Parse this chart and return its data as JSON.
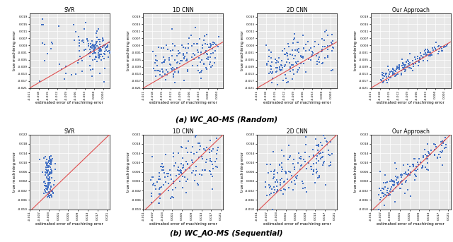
{
  "row1_title": "(a) WC_AO-MS (Random)",
  "row2_title": "(b) WC_AO-MS (Sequential)",
  "subplot_titles_row1": [
    "SVR",
    "1D CNN",
    "2D CNN",
    "Our Approach"
  ],
  "subplot_titles_row2": [
    "SVR",
    "1D CNN",
    "2D CNN",
    "Our Approach"
  ],
  "row1_xlim": [
    -0.021,
    0.005
  ],
  "row1_ylim": [
    -0.021,
    0.021
  ],
  "row1_xticks": [
    -0.021,
    -0.018,
    -0.015,
    -0.012,
    -0.009,
    -0.006,
    -0.003,
    0.0,
    0.003
  ],
  "row1_yticks": [
    -0.021,
    -0.017,
    -0.013,
    -0.009,
    -0.005,
    -0.001,
    0.003,
    0.007,
    0.011,
    0.015,
    0.019
  ],
  "row2_xlim": [
    -0.011,
    0.022
  ],
  "row2_ylim": [
    -0.01,
    0.022
  ],
  "row2_xticks": [
    -0.011,
    -0.007,
    -0.003,
    0.001,
    0.005,
    0.009,
    0.013,
    0.017,
    0.021
  ],
  "row2_yticks": [
    -0.01,
    -0.006,
    -0.002,
    0.002,
    0.006,
    0.01,
    0.014,
    0.018,
    0.022
  ],
  "xlabel": "estimated error of machining error",
  "ylabel": "true machining error",
  "dot_color": "#4472C4",
  "line_color": "#E05050",
  "bg_color": "#E8E8E8",
  "grid_color": "#FFFFFF",
  "dot_size": 3,
  "title_fontsize": 5.5,
  "label_fontsize": 4.0,
  "tick_fontsize": 3.2,
  "caption_fontsize": 7.5
}
